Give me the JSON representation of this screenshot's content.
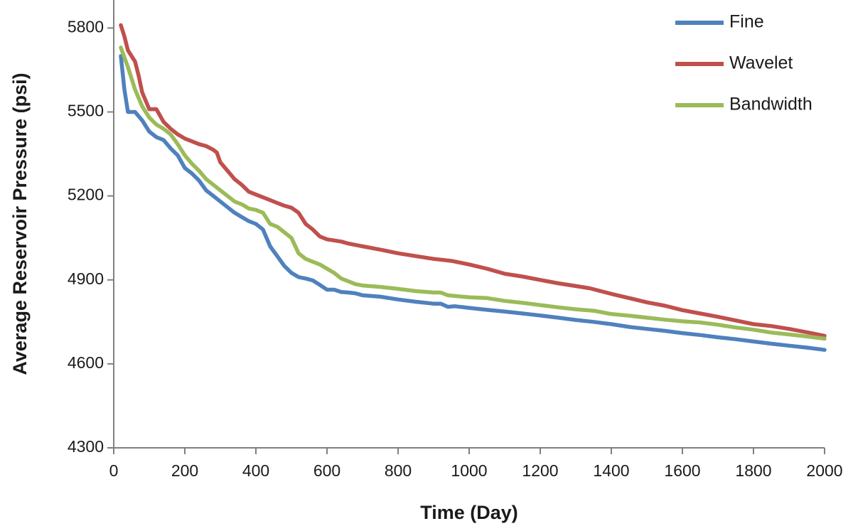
{
  "chart_data": {
    "type": "line",
    "title": "",
    "xlabel": "Time (Day)",
    "ylabel": "Average Reservoir Pressure (psi)",
    "xlim": [
      0,
      2000
    ],
    "ylim": [
      4300,
      5900
    ],
    "xticks": [
      0,
      200,
      400,
      600,
      800,
      1000,
      1200,
      1400,
      1600,
      1800,
      2000
    ],
    "yticks": [
      4300,
      4600,
      4900,
      5200,
      5500,
      5800
    ],
    "grid": false,
    "legend_position": "top-right",
    "series": [
      {
        "name": "Fine",
        "color": "#4f81bd",
        "points": [
          [
            20,
            5700
          ],
          [
            30,
            5580
          ],
          [
            40,
            5500
          ],
          [
            60,
            5500
          ],
          [
            80,
            5470
          ],
          [
            100,
            5430
          ],
          [
            120,
            5410
          ],
          [
            140,
            5400
          ],
          [
            160,
            5370
          ],
          [
            180,
            5345
          ],
          [
            200,
            5300
          ],
          [
            220,
            5280
          ],
          [
            240,
            5255
          ],
          [
            260,
            5220
          ],
          [
            280,
            5200
          ],
          [
            300,
            5180
          ],
          [
            320,
            5160
          ],
          [
            340,
            5140
          ],
          [
            360,
            5125
          ],
          [
            380,
            5110
          ],
          [
            400,
            5100
          ],
          [
            420,
            5080
          ],
          [
            440,
            5020
          ],
          [
            460,
            4985
          ],
          [
            480,
            4950
          ],
          [
            500,
            4925
          ],
          [
            520,
            4910
          ],
          [
            540,
            4905
          ],
          [
            560,
            4898
          ],
          [
            580,
            4882
          ],
          [
            600,
            4865
          ],
          [
            620,
            4865
          ],
          [
            640,
            4857
          ],
          [
            660,
            4855
          ],
          [
            680,
            4852
          ],
          [
            700,
            4845
          ],
          [
            750,
            4840
          ],
          [
            800,
            4830
          ],
          [
            850,
            4822
          ],
          [
            900,
            4815
          ],
          [
            920,
            4815
          ],
          [
            940,
            4804
          ],
          [
            960,
            4806
          ],
          [
            1000,
            4800
          ],
          [
            1050,
            4793
          ],
          [
            1100,
            4787
          ],
          [
            1150,
            4780
          ],
          [
            1200,
            4773
          ],
          [
            1250,
            4765
          ],
          [
            1300,
            4757
          ],
          [
            1350,
            4750
          ],
          [
            1400,
            4742
          ],
          [
            1450,
            4732
          ],
          [
            1500,
            4725
          ],
          [
            1550,
            4718
          ],
          [
            1600,
            4710
          ],
          [
            1650,
            4703
          ],
          [
            1700,
            4695
          ],
          [
            1750,
            4688
          ],
          [
            1800,
            4680
          ],
          [
            1850,
            4672
          ],
          [
            1900,
            4665
          ],
          [
            1950,
            4658
          ],
          [
            2000,
            4650
          ]
        ]
      },
      {
        "name": "Wavelet",
        "color": "#c0504d",
        "points": [
          [
            20,
            5810
          ],
          [
            30,
            5770
          ],
          [
            40,
            5720
          ],
          [
            60,
            5680
          ],
          [
            70,
            5630
          ],
          [
            80,
            5570
          ],
          [
            100,
            5510
          ],
          [
            120,
            5510
          ],
          [
            140,
            5465
          ],
          [
            160,
            5440
          ],
          [
            180,
            5420
          ],
          [
            200,
            5405
          ],
          [
            220,
            5395
          ],
          [
            240,
            5385
          ],
          [
            260,
            5378
          ],
          [
            280,
            5365
          ],
          [
            290,
            5355
          ],
          [
            300,
            5320
          ],
          [
            320,
            5290
          ],
          [
            340,
            5260
          ],
          [
            360,
            5240
          ],
          [
            380,
            5215
          ],
          [
            400,
            5205
          ],
          [
            420,
            5195
          ],
          [
            440,
            5185
          ],
          [
            460,
            5175
          ],
          [
            480,
            5165
          ],
          [
            500,
            5158
          ],
          [
            520,
            5140
          ],
          [
            540,
            5100
          ],
          [
            560,
            5080
          ],
          [
            580,
            5055
          ],
          [
            600,
            5045
          ],
          [
            640,
            5037
          ],
          [
            660,
            5030
          ],
          [
            700,
            5020
          ],
          [
            750,
            5008
          ],
          [
            800,
            4995
          ],
          [
            850,
            4985
          ],
          [
            900,
            4975
          ],
          [
            950,
            4968
          ],
          [
            1000,
            4955
          ],
          [
            1050,
            4940
          ],
          [
            1100,
            4922
          ],
          [
            1150,
            4912
          ],
          [
            1200,
            4900
          ],
          [
            1250,
            4888
          ],
          [
            1300,
            4878
          ],
          [
            1340,
            4870
          ],
          [
            1400,
            4850
          ],
          [
            1450,
            4835
          ],
          [
            1500,
            4820
          ],
          [
            1550,
            4808
          ],
          [
            1600,
            4792
          ],
          [
            1650,
            4780
          ],
          [
            1700,
            4768
          ],
          [
            1750,
            4755
          ],
          [
            1800,
            4742
          ],
          [
            1850,
            4735
          ],
          [
            1900,
            4725
          ],
          [
            1950,
            4713
          ],
          [
            2000,
            4700
          ]
        ]
      },
      {
        "name": "Bandwidth",
        "color": "#9bbb59",
        "points": [
          [
            20,
            5730
          ],
          [
            40,
            5660
          ],
          [
            60,
            5580
          ],
          [
            80,
            5520
          ],
          [
            100,
            5480
          ],
          [
            120,
            5455
          ],
          [
            140,
            5440
          ],
          [
            160,
            5420
          ],
          [
            180,
            5385
          ],
          [
            200,
            5345
          ],
          [
            220,
            5315
          ],
          [
            240,
            5290
          ],
          [
            260,
            5260
          ],
          [
            280,
            5240
          ],
          [
            300,
            5220
          ],
          [
            320,
            5200
          ],
          [
            340,
            5180
          ],
          [
            360,
            5170
          ],
          [
            380,
            5155
          ],
          [
            400,
            5150
          ],
          [
            420,
            5140
          ],
          [
            440,
            5100
          ],
          [
            460,
            5090
          ],
          [
            480,
            5070
          ],
          [
            500,
            5050
          ],
          [
            520,
            4995
          ],
          [
            540,
            4975
          ],
          [
            560,
            4965
          ],
          [
            580,
            4955
          ],
          [
            600,
            4940
          ],
          [
            620,
            4925
          ],
          [
            640,
            4905
          ],
          [
            660,
            4895
          ],
          [
            680,
            4885
          ],
          [
            700,
            4880
          ],
          [
            750,
            4875
          ],
          [
            800,
            4868
          ],
          [
            850,
            4860
          ],
          [
            900,
            4855
          ],
          [
            920,
            4855
          ],
          [
            940,
            4845
          ],
          [
            1000,
            4838
          ],
          [
            1050,
            4835
          ],
          [
            1100,
            4825
          ],
          [
            1150,
            4818
          ],
          [
            1200,
            4810
          ],
          [
            1250,
            4802
          ],
          [
            1300,
            4795
          ],
          [
            1350,
            4790
          ],
          [
            1400,
            4778
          ],
          [
            1450,
            4772
          ],
          [
            1500,
            4765
          ],
          [
            1550,
            4758
          ],
          [
            1600,
            4752
          ],
          [
            1650,
            4748
          ],
          [
            1700,
            4740
          ],
          [
            1750,
            4730
          ],
          [
            1800,
            4722
          ],
          [
            1850,
            4712
          ],
          [
            1900,
            4705
          ],
          [
            1950,
            4698
          ],
          [
            2000,
            4690
          ]
        ]
      }
    ]
  }
}
